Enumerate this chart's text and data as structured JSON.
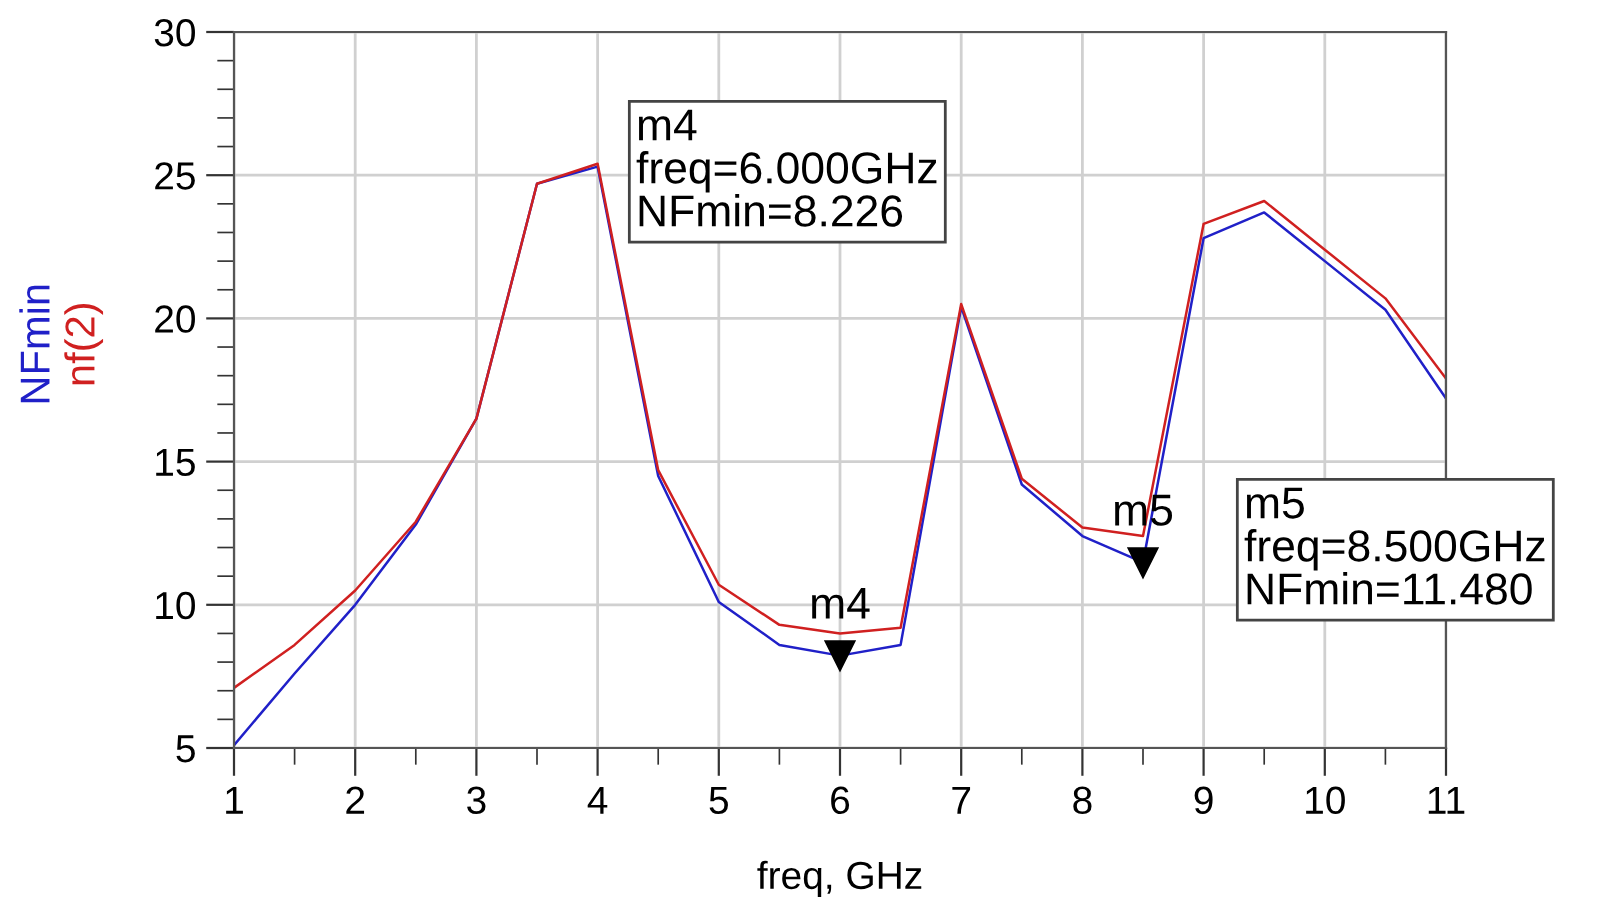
{
  "chart_data": {
    "type": "line",
    "xlabel": "freq, GHz",
    "x": [
      1,
      1.5,
      2,
      2.5,
      3,
      3.5,
      4,
      4.5,
      5,
      5.5,
      6,
      6.5,
      7,
      7.5,
      8,
      8.5,
      9,
      9.5,
      10,
      10.5,
      11
    ],
    "series": [
      {
        "name": "NFmin",
        "color": "#2020c8",
        "values": [
          5.1,
          7.6,
          10.0,
          12.8,
          16.5,
          24.7,
          25.3,
          14.5,
          10.1,
          8.6,
          8.226,
          8.6,
          20.4,
          14.2,
          12.4,
          11.48,
          22.8,
          23.7,
          22.0,
          20.3,
          17.2
        ]
      },
      {
        "name": "nf(2)",
        "color": "#d02020",
        "values": [
          7.1,
          8.6,
          10.5,
          12.9,
          16.5,
          24.7,
          25.4,
          14.7,
          10.7,
          9.3,
          9.0,
          9.2,
          20.5,
          14.4,
          12.7,
          12.4,
          23.3,
          24.1,
          22.4,
          20.7,
          17.9
        ]
      }
    ],
    "xlim": [
      1,
      11
    ],
    "ylim": [
      5,
      30
    ],
    "xticks": [
      1,
      2,
      3,
      4,
      5,
      6,
      7,
      8,
      9,
      10,
      11,
      {
        "value": 1.5,
        "label": null
      },
      {
        "value": 2.5,
        "label": null
      },
      {
        "value": 3.5,
        "label": null
      },
      {
        "value": 4.5,
        "label": null
      },
      {
        "value": 5.5,
        "label": null
      },
      {
        "value": 6.5,
        "label": null
      },
      {
        "value": 7.5,
        "label": null
      },
      {
        "value": 8.5,
        "label": null
      },
      {
        "value": 9.5,
        "label": null
      },
      {
        "value": 10.5,
        "label": null
      }
    ],
    "yticks": [
      5,
      10,
      15,
      20,
      25,
      30,
      {
        "value": 6,
        "label": null
      },
      {
        "value": 7,
        "label": null
      },
      {
        "value": 8,
        "label": null
      },
      {
        "value": 9,
        "label": null
      },
      {
        "value": 11,
        "label": null
      },
      {
        "value": 12,
        "label": null
      },
      {
        "value": 13,
        "label": null
      },
      {
        "value": 14,
        "label": null
      },
      {
        "value": 16,
        "label": null
      },
      {
        "value": 17,
        "label": null
      },
      {
        "value": 18,
        "label": null
      },
      {
        "value": 19,
        "label": null
      },
      {
        "value": 21,
        "label": null
      },
      {
        "value": 22,
        "label": null
      },
      {
        "value": 23,
        "label": null
      },
      {
        "value": 24,
        "label": null
      },
      {
        "value": 26,
        "label": null
      },
      {
        "value": 27,
        "label": null
      },
      {
        "value": 28,
        "label": null
      },
      {
        "value": 29,
        "label": null
      }
    ],
    "grid": true,
    "legend": "left",
    "marker": "none",
    "line_style": "solid",
    "annotations": [
      {
        "text": "m4",
        "x": 6,
        "y": 8.226
      },
      {
        "text": "m5",
        "x": 8.5,
        "y": 11.48
      },
      "m4\nfreq=6.000GHz\nNFmin=8.226",
      "m5\nfreq=8.500GHz\nNFmin=11.480"
    ]
  }
}
